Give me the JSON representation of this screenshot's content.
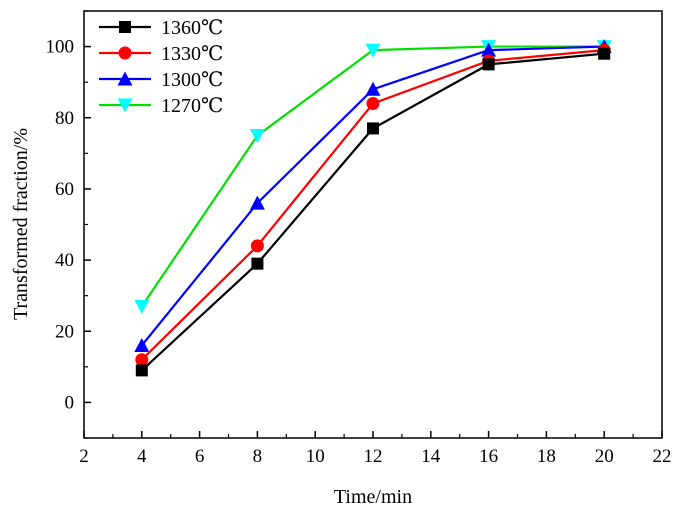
{
  "chart_data": {
    "type": "line",
    "xlabel": "Time/min",
    "ylabel": "Transformed fraction/%",
    "xlim": [
      2,
      22
    ],
    "ylim": [
      -10,
      110
    ],
    "xticks": [
      2,
      4,
      6,
      8,
      10,
      12,
      14,
      16,
      18,
      20,
      22
    ],
    "yticks": [
      0,
      20,
      40,
      60,
      80,
      100
    ],
    "x": [
      4,
      8,
      12,
      16,
      20
    ],
    "legend_position": "top-left",
    "series": [
      {
        "name": "1360℃",
        "color": "#000000",
        "marker": "square",
        "values": [
          9,
          39,
          77,
          95,
          98
        ]
      },
      {
        "name": "1330℃",
        "color": "#ff0000",
        "marker": "circle",
        "values": [
          12,
          44,
          84,
          96,
          99
        ]
      },
      {
        "name": "1300℃",
        "color": "#0000ff",
        "marker": "triangle-up",
        "values": [
          16,
          56,
          88,
          99,
          100
        ]
      },
      {
        "name": "1270℃",
        "color": "#00e000",
        "marker_color": "#00ffff",
        "marker": "triangle-down",
        "values": [
          27,
          75,
          99,
          100,
          100
        ]
      }
    ]
  }
}
